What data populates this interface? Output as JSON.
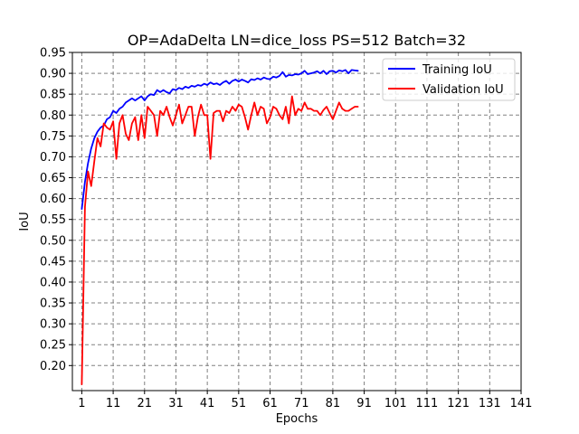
{
  "chart_data": {
    "type": "line",
    "title": "OP=AdaDelta LN=dice_loss PS=512 Batch=32",
    "xlabel": "Epochs",
    "ylabel": "IoU",
    "xlim": [
      -2,
      141
    ],
    "ylim": [
      0.14,
      0.95
    ],
    "xticks": [
      1,
      11,
      21,
      31,
      41,
      51,
      61,
      71,
      81,
      91,
      101,
      111,
      121,
      131,
      141
    ],
    "yticks": [
      0.2,
      0.25,
      0.3,
      0.35,
      0.4,
      0.45,
      0.5,
      0.55,
      0.6,
      0.65,
      0.7,
      0.75,
      0.8,
      0.85,
      0.9,
      0.95
    ],
    "ytick_labels": [
      "0.20",
      "0.25",
      "0.30",
      "0.35",
      "0.40",
      "0.45",
      "0.50",
      "0.55",
      "0.60",
      "0.65",
      "0.70",
      "0.75",
      "0.80",
      "0.85",
      "0.90",
      "0.95"
    ],
    "grid": true,
    "legend_position": "top-right",
    "series": [
      {
        "name": "Training IoU",
        "color": "#0000ff",
        "x": [
          1,
          2,
          3,
          4,
          5,
          6,
          7,
          8,
          9,
          10,
          11,
          12,
          13,
          14,
          15,
          16,
          17,
          18,
          19,
          20,
          21,
          22,
          23,
          24,
          25,
          26,
          27,
          28,
          29,
          30,
          31,
          32,
          33,
          34,
          35,
          36,
          37,
          38,
          39,
          40,
          41,
          42,
          43,
          44,
          45,
          46,
          47,
          48,
          49,
          50,
          51,
          52,
          53,
          54,
          55,
          56,
          57,
          58,
          59,
          60,
          61,
          62,
          63,
          64,
          65,
          66,
          67,
          68,
          69,
          70,
          71,
          72,
          73,
          74,
          75,
          76,
          77,
          78,
          79,
          80,
          81,
          82,
          83,
          84,
          85,
          86,
          87,
          88,
          89
        ],
        "values": [
          0.575,
          0.64,
          0.685,
          0.72,
          0.745,
          0.76,
          0.77,
          0.775,
          0.79,
          0.795,
          0.81,
          0.805,
          0.815,
          0.82,
          0.83,
          0.835,
          0.84,
          0.835,
          0.84,
          0.845,
          0.835,
          0.845,
          0.85,
          0.848,
          0.86,
          0.855,
          0.86,
          0.855,
          0.852,
          0.862,
          0.86,
          0.865,
          0.862,
          0.868,
          0.865,
          0.87,
          0.868,
          0.872,
          0.87,
          0.875,
          0.872,
          0.878,
          0.874,
          0.876,
          0.872,
          0.878,
          0.882,
          0.875,
          0.882,
          0.885,
          0.88,
          0.885,
          0.882,
          0.878,
          0.886,
          0.884,
          0.888,
          0.885,
          0.89,
          0.887,
          0.886,
          0.892,
          0.89,
          0.894,
          0.903,
          0.892,
          0.896,
          0.895,
          0.898,
          0.897,
          0.9,
          0.906,
          0.898,
          0.9,
          0.902,
          0.905,
          0.9,
          0.906,
          0.898,
          0.905,
          0.906,
          0.902,
          0.907,
          0.905,
          0.908,
          0.9,
          0.908,
          0.907,
          0.906
        ]
      },
      {
        "name": "Validation IoU",
        "color": "#ff0000",
        "x": [
          1,
          2,
          3,
          4,
          5,
          6,
          7,
          8,
          9,
          10,
          11,
          12,
          13,
          14,
          15,
          16,
          17,
          18,
          19,
          20,
          21,
          22,
          23,
          24,
          25,
          26,
          27,
          28,
          29,
          30,
          31,
          32,
          33,
          34,
          35,
          36,
          37,
          38,
          39,
          40,
          41,
          42,
          43,
          44,
          45,
          46,
          47,
          48,
          49,
          50,
          51,
          52,
          53,
          54,
          55,
          56,
          57,
          58,
          59,
          60,
          61,
          62,
          63,
          64,
          65,
          66,
          67,
          68,
          69,
          70,
          71,
          72,
          73,
          74,
          75,
          76,
          77,
          78,
          79,
          80,
          81,
          82,
          83,
          84,
          85,
          86,
          87,
          88,
          89
        ],
        "values": [
          0.155,
          0.58,
          0.665,
          0.63,
          0.69,
          0.745,
          0.725,
          0.78,
          0.77,
          0.765,
          0.785,
          0.695,
          0.78,
          0.8,
          0.755,
          0.74,
          0.78,
          0.795,
          0.74,
          0.8,
          0.745,
          0.82,
          0.81,
          0.8,
          0.75,
          0.81,
          0.8,
          0.82,
          0.795,
          0.775,
          0.8,
          0.825,
          0.78,
          0.8,
          0.82,
          0.82,
          0.75,
          0.795,
          0.825,
          0.8,
          0.8,
          0.695,
          0.805,
          0.81,
          0.81,
          0.785,
          0.81,
          0.805,
          0.82,
          0.81,
          0.825,
          0.82,
          0.795,
          0.765,
          0.8,
          0.83,
          0.8,
          0.82,
          0.815,
          0.78,
          0.795,
          0.82,
          0.815,
          0.8,
          0.79,
          0.82,
          0.78,
          0.845,
          0.8,
          0.815,
          0.81,
          0.83,
          0.815,
          0.815,
          0.81,
          0.81,
          0.8,
          0.812,
          0.82,
          0.805,
          0.79,
          0.81,
          0.83,
          0.815,
          0.81,
          0.81,
          0.815,
          0.82,
          0.82
        ]
      }
    ]
  }
}
